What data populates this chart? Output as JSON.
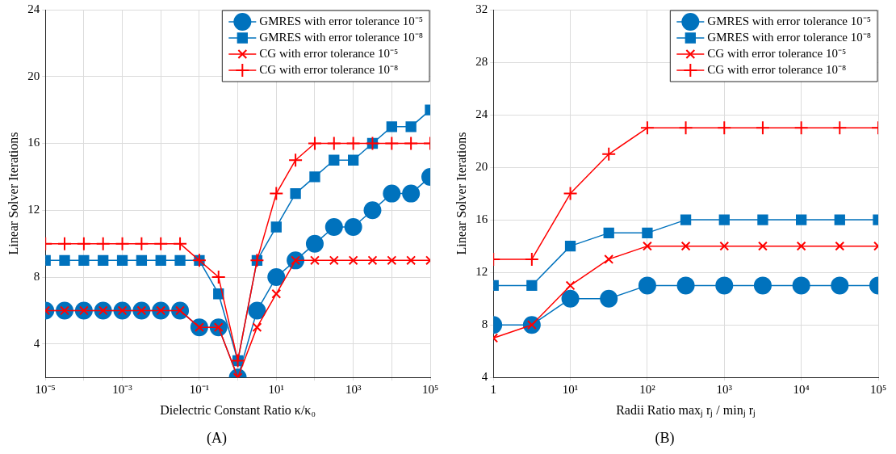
{
  "chart_data": [
    {
      "type": "line",
      "title": "(A)",
      "xlabel": "Dielectric Constant Ratio κ/κ₀",
      "ylabel": "Linear Solver Iterations",
      "x": [
        1e-05,
        3.16e-05,
        0.0001,
        0.000316,
        0.001,
        0.00316,
        0.01,
        0.0316,
        0.1,
        0.316,
        1,
        3.16,
        10,
        31.6,
        100,
        316,
        1000,
        3160,
        10000,
        31600,
        100000
      ],
      "series": [
        {
          "name": "GMRES with error tolerance 10⁻⁵",
          "color": "#0072bd",
          "marker": "circle",
          "values": [
            6,
            6,
            6,
            6,
            6,
            6,
            6,
            6,
            5,
            5,
            2,
            6,
            8,
            9,
            10,
            11,
            11,
            12,
            13,
            13,
            14
          ]
        },
        {
          "name": "GMRES with error tolerance 10⁻⁸",
          "color": "#0072bd",
          "marker": "square",
          "values": [
            9,
            9,
            9,
            9,
            9,
            9,
            9,
            9,
            9,
            7,
            3,
            9,
            11,
            13,
            14,
            15,
            15,
            16,
            17,
            17,
            18
          ]
        },
        {
          "name": "CG with error tolerance 10⁻⁵",
          "color": "#ff0000",
          "marker": "cross",
          "values": [
            6,
            6,
            6,
            6,
            6,
            6,
            6,
            6,
            5,
            5,
            2,
            5,
            7,
            9,
            9,
            9,
            9,
            9,
            9,
            9,
            9
          ]
        },
        {
          "name": "CG with error tolerance 10⁻⁸",
          "color": "#ff0000",
          "marker": "plus",
          "values": [
            10,
            10,
            10,
            10,
            10,
            10,
            10,
            10,
            9,
            8,
            3,
            9,
            13,
            15,
            16,
            16,
            16,
            16,
            16,
            16,
            16
          ]
        }
      ],
      "log": "x",
      "xlim": [
        1e-05,
        100000
      ],
      "xticks": [
        {
          "value": 1e-05,
          "label": "10⁻⁵"
        },
        {
          "value": 0.0001,
          "label": null
        },
        {
          "value": 0.001,
          "label": "10⁻³"
        },
        {
          "value": 0.01,
          "label": null
        },
        {
          "value": 0.1,
          "label": "10⁻¹"
        },
        {
          "value": 1,
          "label": null
        },
        {
          "value": 10,
          "label": "10¹"
        },
        {
          "value": 100,
          "label": null
        },
        {
          "value": 1000,
          "label": "10³"
        },
        {
          "value": 10000,
          "label": null
        },
        {
          "value": 100000,
          "label": "10⁵"
        }
      ],
      "ylim": [
        2,
        24
      ],
      "yticks": [
        4,
        8,
        12,
        16,
        20,
        24
      ],
      "grid": true,
      "legend": "top right"
    },
    {
      "type": "line",
      "title": "(B)",
      "xlabel": "Radii Ratio maxⱼ rⱼ / minⱼ rⱼ",
      "ylabel": "Linear Solver Iterations",
      "x": [
        1,
        3.16,
        10,
        31.6,
        100,
        316,
        1000,
        3160,
        10000,
        31600,
        100000
      ],
      "series": [
        {
          "name": "GMRES with error tolerance 10⁻⁵",
          "color": "#0072bd",
          "marker": "circle",
          "values": [
            8,
            8,
            10,
            10,
            11,
            11,
            11,
            11,
            11,
            11,
            11
          ]
        },
        {
          "name": "GMRES with error tolerance 10⁻⁸",
          "color": "#0072bd",
          "marker": "square",
          "values": [
            11,
            11,
            14,
            15,
            15,
            16,
            16,
            16,
            16,
            16,
            16
          ]
        },
        {
          "name": "CG with error tolerance 10⁻⁵",
          "color": "#ff0000",
          "marker": "cross",
          "values": [
            7,
            8,
            11,
            13,
            14,
            14,
            14,
            14,
            14,
            14,
            14
          ]
        },
        {
          "name": "CG with error tolerance 10⁻⁸",
          "color": "#ff0000",
          "marker": "plus",
          "values": [
            13,
            13,
            18,
            21,
            23,
            23,
            23,
            23,
            23,
            23,
            23
          ]
        }
      ],
      "log": "x",
      "xlim": [
        1,
        100000
      ],
      "xticks": [
        {
          "value": 1,
          "label": "1"
        },
        {
          "value": 10,
          "label": "10¹"
        },
        {
          "value": 100,
          "label": "10²"
        },
        {
          "value": 1000,
          "label": "10³"
        },
        {
          "value": 10000,
          "label": "10⁴"
        },
        {
          "value": 100000,
          "label": "10⁵"
        }
      ],
      "ylim": [
        4,
        32
      ],
      "yticks": [
        4,
        8,
        12,
        16,
        20,
        24,
        28,
        32
      ],
      "grid": true,
      "legend": "top right"
    }
  ]
}
